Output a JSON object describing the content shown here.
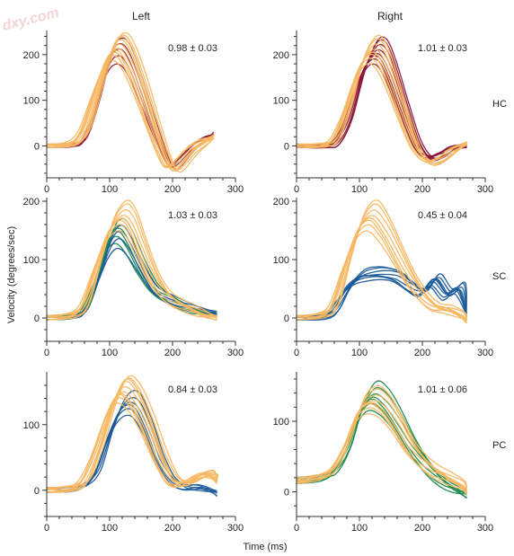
{
  "watermark": "dxy.com",
  "col_titles": [
    "Left",
    "Right"
  ],
  "row_labels": [
    "HC",
    "SC",
    "PC"
  ],
  "xlabel": "Time (ms)",
  "ylabel": "Velocity (degrees/sec)",
  "colors": {
    "orange": "#f7b762",
    "maroon": "#8b1a3a",
    "green": "#1e8a4f",
    "blue": "#1a5a9a",
    "axis": "#333333"
  },
  "chart_data": [
    {
      "type": "line",
      "id": "HC-Left",
      "annotation": "0.98 ± 0.03",
      "xlim": [
        0,
        300
      ],
      "ylim": [
        -70,
        245
      ],
      "xticks": [
        0,
        100,
        200,
        300
      ],
      "yticks": [
        0,
        100,
        200
      ],
      "series": [
        {
          "color": "maroon",
          "count": 5,
          "x": [
            0,
            40,
            60,
            80,
            100,
            115,
            130,
            150,
            170,
            190,
            200,
            210,
            230,
            250,
            265
          ],
          "y": [
            0,
            2,
            15,
            90,
            185,
            210,
            190,
            120,
            40,
            -30,
            -45,
            -35,
            -5,
            15,
            25
          ]
        },
        {
          "color": "orange",
          "count": 10,
          "x": [
            0,
            40,
            60,
            80,
            100,
            115,
            130,
            150,
            170,
            190,
            200,
            210,
            230,
            250,
            265
          ],
          "y": [
            0,
            5,
            35,
            120,
            200,
            220,
            195,
            125,
            40,
            -35,
            -50,
            -40,
            -10,
            10,
            20
          ]
        }
      ]
    },
    {
      "type": "line",
      "id": "HC-Right",
      "annotation": "1.01 ± 0.03",
      "xlim": [
        0,
        300
      ],
      "ylim": [
        -70,
        245
      ],
      "xticks": [
        0,
        100,
        200,
        300
      ],
      "yticks": [
        0,
        100,
        200
      ],
      "series": [
        {
          "color": "maroon",
          "count": 8,
          "x": [
            0,
            40,
            60,
            80,
            100,
            120,
            135,
            150,
            170,
            190,
            210,
            230,
            250,
            270
          ],
          "y": [
            0,
            0,
            5,
            50,
            140,
            200,
            205,
            165,
            85,
            10,
            -25,
            -20,
            -5,
            0
          ]
        },
        {
          "color": "orange",
          "count": 8,
          "x": [
            0,
            40,
            60,
            80,
            100,
            120,
            135,
            150,
            170,
            190,
            210,
            230,
            250,
            270
          ],
          "y": [
            0,
            2,
            15,
            80,
            170,
            210,
            195,
            145,
            65,
            -5,
            -35,
            -30,
            -10,
            5
          ]
        }
      ]
    },
    {
      "type": "line",
      "id": "SC-Left",
      "annotation": "1.03 ± 0.03",
      "xlim": [
        0,
        300
      ],
      "ylim": [
        -40,
        200
      ],
      "xticks": [
        0,
        100,
        200,
        300
      ],
      "yticks": [
        0,
        100,
        200
      ],
      "series": [
        {
          "color": "green",
          "count": 6,
          "x": [
            0,
            40,
            60,
            80,
            100,
            115,
            130,
            150,
            170,
            190,
            210,
            230,
            250,
            270
          ],
          "y": [
            0,
            3,
            15,
            70,
            135,
            150,
            130,
            85,
            50,
            35,
            25,
            15,
            10,
            5
          ]
        },
        {
          "color": "blue",
          "count": 4,
          "x": [
            0,
            40,
            60,
            80,
            100,
            115,
            130,
            150,
            170,
            190,
            210,
            230,
            250,
            270
          ],
          "y": [
            0,
            3,
            12,
            60,
            120,
            140,
            125,
            85,
            50,
            35,
            25,
            18,
            12,
            8
          ]
        },
        {
          "color": "orange",
          "count": 8,
          "x": [
            0,
            40,
            60,
            80,
            100,
            120,
            135,
            150,
            170,
            190,
            210,
            230,
            250,
            270
          ],
          "y": [
            0,
            5,
            25,
            90,
            150,
            175,
            160,
            120,
            70,
            40,
            25,
            15,
            5,
            0
          ]
        }
      ]
    },
    {
      "type": "line",
      "id": "SC-Right",
      "annotation": "0.45 ± 0.04",
      "xlim": [
        0,
        300
      ],
      "ylim": [
        -40,
        200
      ],
      "xticks": [
        0,
        100,
        200,
        300
      ],
      "yticks": [
        0,
        100,
        200
      ],
      "series": [
        {
          "color": "blue",
          "count": 8,
          "x": [
            0,
            40,
            60,
            80,
            100,
            120,
            140,
            160,
            180,
            200,
            220,
            240,
            260,
            270
          ],
          "y": [
            0,
            2,
            15,
            50,
            70,
            75,
            75,
            70,
            55,
            45,
            65,
            40,
            50,
            5
          ]
        },
        {
          "color": "orange",
          "count": 8,
          "x": [
            0,
            40,
            60,
            80,
            100,
            120,
            140,
            160,
            180,
            200,
            220,
            240,
            260,
            270
          ],
          "y": [
            0,
            5,
            25,
            95,
            155,
            175,
            150,
            110,
            70,
            40,
            20,
            15,
            5,
            -5
          ]
        }
      ]
    },
    {
      "type": "line",
      "id": "PC-Left",
      "annotation": "0.84 ± 0.03",
      "xlim": [
        0,
        300
      ],
      "ylim": [
        -40,
        175
      ],
      "xticks": [
        0,
        100,
        200,
        300
      ],
      "yticks": [
        0,
        100
      ],
      "series": [
        {
          "color": "blue",
          "count": 6,
          "x": [
            0,
            40,
            60,
            80,
            100,
            120,
            140,
            160,
            180,
            200,
            220,
            240,
            260,
            270
          ],
          "y": [
            0,
            2,
            8,
            30,
            85,
            125,
            130,
            95,
            45,
            15,
            5,
            5,
            0,
            -5
          ]
        },
        {
          "color": "orange",
          "count": 10,
          "x": [
            0,
            40,
            60,
            80,
            100,
            120,
            140,
            160,
            180,
            200,
            220,
            240,
            260,
            270
          ],
          "y": [
            0,
            3,
            15,
            60,
            120,
            155,
            140,
            100,
            50,
            15,
            10,
            20,
            25,
            15
          ]
        }
      ]
    },
    {
      "type": "line",
      "id": "PC-Right",
      "annotation": "1.01 ± 0.06",
      "xlim": [
        0,
        300
      ],
      "ylim": [
        -35,
        165
      ],
      "xticks": [
        0,
        100,
        200,
        300
      ],
      "yticks": [
        0,
        100
      ],
      "series": [
        {
          "color": "green",
          "count": 7,
          "x": [
            0,
            40,
            60,
            80,
            100,
            120,
            140,
            160,
            180,
            200,
            220,
            240,
            260,
            270
          ],
          "y": [
            15,
            20,
            30,
            60,
            110,
            135,
            125,
            100,
            70,
            45,
            25,
            10,
            0,
            -5
          ]
        },
        {
          "color": "orange",
          "count": 8,
          "x": [
            0,
            40,
            60,
            80,
            100,
            120,
            140,
            160,
            180,
            200,
            220,
            240,
            260,
            270
          ],
          "y": [
            15,
            22,
            35,
            70,
            115,
            130,
            120,
            95,
            65,
            45,
            30,
            20,
            10,
            0
          ]
        }
      ]
    }
  ]
}
